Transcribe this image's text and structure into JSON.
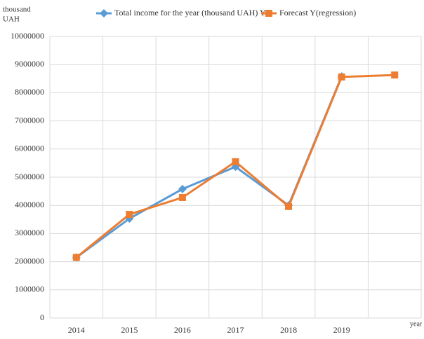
{
  "chart_data": {
    "type": "line",
    "y_label": [
      "thousand",
      "UAH"
    ],
    "x_label": "year",
    "categories": [
      "2014",
      "2015",
      "2016",
      "2017",
      "2018",
      "2019",
      null
    ],
    "series": [
      {
        "name": "Total income for the year (thousand UAH) Y",
        "color": "#5b9bd5",
        "marker": "diamond",
        "values": [
          2150000,
          3530000,
          4580000,
          5370000,
          4000000,
          8580000,
          null
        ]
      },
      {
        "name": "Forecast Y(regression)",
        "color": "#ed7d31",
        "marker": "square",
        "values": [
          2150000,
          3680000,
          4280000,
          5550000,
          3960000,
          8560000,
          8630000
        ]
      }
    ],
    "ylim": [
      0,
      10000000
    ],
    "yticks": [
      0,
      1000000,
      2000000,
      3000000,
      4000000,
      5000000,
      6000000,
      7000000,
      8000000,
      9000000,
      10000000
    ],
    "grid": true
  }
}
